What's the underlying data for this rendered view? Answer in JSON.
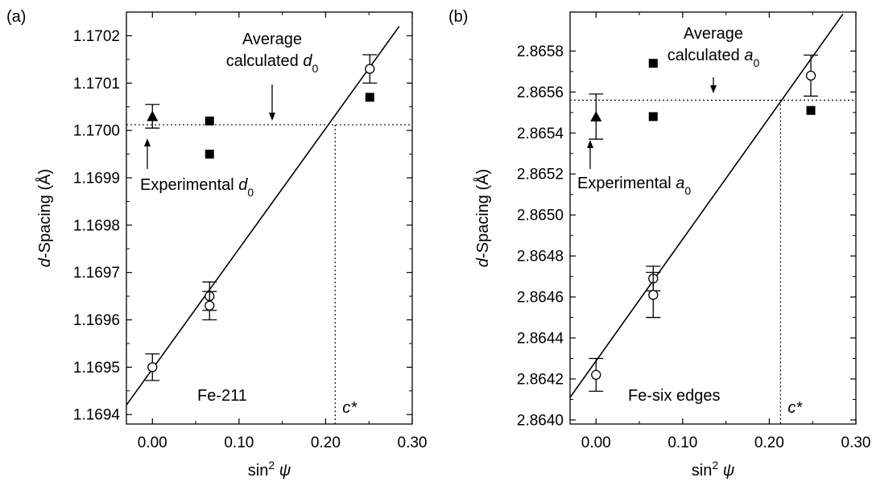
{
  "chart_data": [
    {
      "type": "scatter",
      "panel_label": "(a)",
      "xlabel_base": "sin",
      "xlabel_sup": "2",
      "xlabel_var": "ψ",
      "ylabel_italic": "d",
      "ylabel_rest": "-Spacing (Å)",
      "xlim": [
        -0.03,
        0.3
      ],
      "ylim": [
        1.16938,
        1.17025
      ],
      "xticks": [
        0.0,
        0.1,
        0.2,
        0.3
      ],
      "xtick_labels": [
        "0.00",
        "0.10",
        "0.20",
        "0.30"
      ],
      "yticks": [
        1.1694,
        1.1695,
        1.1696,
        1.1697,
        1.1698,
        1.1699,
        1.17,
        1.1701,
        1.1702
      ],
      "ytick_labels": [
        "1.1694",
        "1.1695",
        "1.1696",
        "1.1697",
        "1.1698",
        "1.1699",
        "1.1700",
        "1.1701",
        "1.1702"
      ],
      "series": [
        {
          "marker": "open-circle",
          "points": [
            {
              "x": 0.0,
              "y": 1.1695,
              "err": 2.8e-05
            },
            {
              "x": 0.066,
              "y": 1.16965,
              "err": 3e-05
            },
            {
              "x": 0.066,
              "y": 1.16963,
              "err": 3e-05
            },
            {
              "x": 0.251,
              "y": 1.17013,
              "err": 3e-05
            }
          ]
        },
        {
          "marker": "filled-square",
          "points": [
            {
              "x": 0.066,
              "y": 1.17002
            },
            {
              "x": 0.066,
              "y": 1.16995
            },
            {
              "x": 0.251,
              "y": 1.17007
            }
          ]
        },
        {
          "marker": "filled-triangle",
          "points": [
            {
              "x": 0.0,
              "y": 1.17003,
              "err": 2.5e-05
            }
          ]
        }
      ],
      "fit_line": {
        "x": [
          -0.03,
          0.285
        ],
        "y": [
          1.16942,
          1.17022
        ]
      },
      "hline_y": 1.170012,
      "vline_x": 0.211,
      "vline_label": "c*",
      "sample_label": "Fe-211",
      "calc_label_line1": "Average",
      "calc_label_line2": "calculated",
      "calc_label_sym": "d",
      "calc_label_sub": "0",
      "exp_label": "Experimental",
      "exp_label_sym": "d",
      "exp_label_sub": "0"
    },
    {
      "type": "scatter",
      "panel_label": "(b)",
      "xlabel_base": "sin",
      "xlabel_sup": "2",
      "xlabel_var": "ψ",
      "ylabel_italic": "d",
      "ylabel_rest": "-Spacing (Å)",
      "xlim": [
        -0.03,
        0.3
      ],
      "ylim": [
        2.86398,
        2.86599
      ],
      "xticks": [
        0.0,
        0.1,
        0.2,
        0.3
      ],
      "xtick_labels": [
        "0.00",
        "0.10",
        "0.20",
        "0.30"
      ],
      "yticks": [
        2.864,
        2.8642,
        2.8644,
        2.8646,
        2.8648,
        2.865,
        2.8652,
        2.8654,
        2.8656,
        2.8658
      ],
      "ytick_labels": [
        "2.8640",
        "2.8642",
        "2.8644",
        "2.8646",
        "2.8648",
        "2.8650",
        "2.8652",
        "2.8654",
        "2.8656",
        "2.8658"
      ],
      "series": [
        {
          "marker": "open-circle",
          "points": [
            {
              "x": 0.0,
              "y": 2.86422,
              "err": 8e-05
            },
            {
              "x": 0.066,
              "y": 2.86469,
              "err": 6e-05
            },
            {
              "x": 0.066,
              "y": 2.86461,
              "err": 0.00011
            },
            {
              "x": 0.248,
              "y": 2.86568,
              "err": 0.0001
            }
          ]
        },
        {
          "marker": "filled-square",
          "points": [
            {
              "x": 0.066,
              "y": 2.86574
            },
            {
              "x": 0.066,
              "y": 2.86548
            },
            {
              "x": 0.248,
              "y": 2.86551
            }
          ]
        },
        {
          "marker": "filled-triangle",
          "points": [
            {
              "x": 0.0,
              "y": 2.86548,
              "err": 0.00011
            }
          ]
        }
      ],
      "fit_line": {
        "x": [
          -0.03,
          0.285
        ],
        "y": [
          2.86411,
          2.86598
        ]
      },
      "hline_y": 2.86556,
      "vline_x": 0.213,
      "vline_label": "c*",
      "sample_label": "Fe-six edges",
      "calc_label_line1": "Average",
      "calc_label_line2": "calculated",
      "calc_label_sym": "a",
      "calc_label_sub": "0",
      "exp_label": "Experimental",
      "exp_label_sym": "a",
      "exp_label_sub": "0"
    }
  ]
}
